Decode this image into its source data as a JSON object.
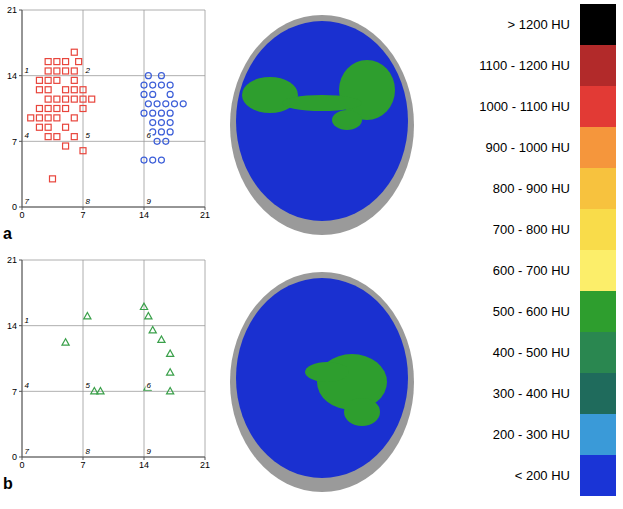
{
  "chart_data": [
    {
      "type": "scatter",
      "label": "a",
      "xlim": [
        0,
        21
      ],
      "ylim": [
        0,
        21
      ],
      "xticks": [
        0,
        7,
        14,
        21
      ],
      "yticks": [
        0,
        7,
        14,
        21
      ],
      "grid": true,
      "series": [
        {
          "color": "#e8453c",
          "marker": "square",
          "x": [
            6,
            3,
            4,
            5,
            6.5,
            3,
            4,
            5,
            6,
            2,
            3,
            4,
            6,
            2,
            3,
            5,
            6,
            7,
            3,
            4,
            5,
            6,
            7,
            8,
            2,
            3,
            4,
            5,
            7,
            1,
            2,
            3,
            4,
            6,
            2,
            3,
            5,
            3,
            4,
            6,
            5,
            7,
            3.5
          ],
          "y": [
            16.5,
            15.5,
            15.5,
            15.5,
            15.5,
            14.5,
            14.5,
            14.5,
            14.5,
            13.5,
            13.5,
            13.5,
            13.5,
            12.5,
            12.5,
            12.5,
            12.5,
            12.5,
            11.5,
            11.5,
            11.5,
            11.5,
            11.5,
            11.5,
            10.5,
            10.5,
            10.5,
            10.5,
            10.5,
            9.5,
            9.5,
            9.5,
            9.5,
            9.5,
            8.5,
            8.5,
            8.5,
            7.5,
            7.5,
            7.5,
            6.5,
            6,
            3
          ]
        },
        {
          "color": "#3d5fd8",
          "marker": "circle",
          "x": [
            14.5,
            16,
            14,
            15,
            16,
            17,
            14,
            15,
            17,
            14.5,
            15.5,
            16.5,
            17.5,
            18.5,
            14,
            15,
            16,
            17,
            15,
            16,
            17,
            15,
            16,
            17,
            15.5,
            16.5,
            14,
            15,
            16
          ],
          "y": [
            14,
            14,
            13,
            13,
            13,
            13,
            12,
            12,
            12,
            11,
            11,
            11,
            11,
            11,
            10,
            10,
            10,
            10,
            9,
            9,
            9,
            8,
            8,
            8,
            7,
            7,
            5,
            5,
            5
          ]
        }
      ],
      "annotations": [
        {
          "text": "1",
          "x": 0,
          "y": 14
        },
        {
          "text": "2",
          "x": 7,
          "y": 14
        },
        {
          "text": "4",
          "x": 0,
          "y": 7
        },
        {
          "text": "5",
          "x": 7,
          "y": 7
        },
        {
          "text": "6",
          "x": 14,
          "y": 7
        },
        {
          "text": "7",
          "x": 0,
          "y": 0
        },
        {
          "text": "8",
          "x": 7,
          "y": 0
        },
        {
          "text": "9",
          "x": 14,
          "y": 0
        }
      ]
    },
    {
      "type": "scatter",
      "label": "b",
      "xlim": [
        0,
        21
      ],
      "ylim": [
        0,
        21
      ],
      "xticks": [
        0,
        7,
        14,
        21
      ],
      "yticks": [
        0,
        7,
        14,
        21
      ],
      "grid": true,
      "series": [
        {
          "color": "#3aa04a",
          "marker": "triangle",
          "x": [
            5,
            7.5,
            8.3,
            9,
            14,
            14.5,
            15,
            16,
            17,
            17,
            14.4,
            17
          ],
          "y": [
            12.2,
            15,
            7,
            7,
            16,
            15,
            13.5,
            12.5,
            11,
            9,
            7.4,
            7
          ]
        }
      ],
      "annotations": [
        {
          "text": "1",
          "x": 0,
          "y": 14
        },
        {
          "text": "4",
          "x": 0,
          "y": 7
        },
        {
          "text": "5",
          "x": 7,
          "y": 7
        },
        {
          "text": "6",
          "x": 14,
          "y": 7
        },
        {
          "text": "7",
          "x": 0,
          "y": 0
        },
        {
          "text": "8",
          "x": 7,
          "y": 0
        },
        {
          "text": "9",
          "x": 14,
          "y": 0
        }
      ]
    }
  ],
  "color_bar": {
    "entries": [
      {
        "label": "> 1200 HU",
        "color": "#000000"
      },
      {
        "label": "1100 - 1200 HU",
        "color": "#b22a2a"
      },
      {
        "label": "1000 - 1100 HU",
        "color": "#e23a35"
      },
      {
        "label": "900 - 1000 HU",
        "color": "#f5963c"
      },
      {
        "label": "800 - 900 HU",
        "color": "#f7c23e"
      },
      {
        "label": "700 - 800 HU",
        "color": "#f9dc4a"
      },
      {
        "label": "600 - 700 HU",
        "color": "#fcee6a"
      },
      {
        "label": "500 - 600 HU",
        "color": "#2e9e2e"
      },
      {
        "label": "400 - 500 HU",
        "color": "#2a8750"
      },
      {
        "label": "300 - 400 HU",
        "color": "#1f6b5c"
      },
      {
        "label": "200 - 300 HU",
        "color": "#3a9ad8"
      },
      {
        "label": "< 200 HU",
        "color": "#1a34d6"
      }
    ]
  }
}
